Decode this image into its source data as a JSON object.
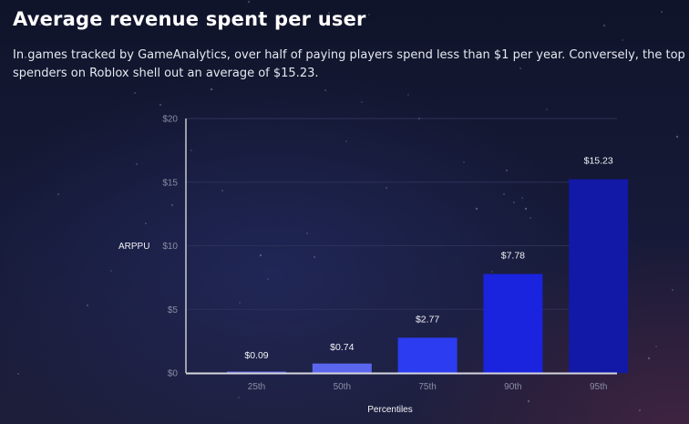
{
  "header": {
    "title": "Average revenue spent per user",
    "subtitle": "In games tracked by GameAnalytics, over half of paying players spend less than $1 per year. Conversely, the top spenders on Roblox shell out an average of $15.23."
  },
  "chart_data": {
    "type": "bar",
    "title": "Average revenue spent per user",
    "xlabel": "Percentiles",
    "ylabel": "ARPPU",
    "categories": [
      "25th",
      "50th",
      "75th",
      "90th",
      "95th"
    ],
    "values": [
      0.09,
      0.74,
      2.77,
      7.78,
      15.23
    ],
    "data_labels": [
      "$0.09",
      "$0.74",
      "$2.77",
      "$7.78",
      "$15.23"
    ],
    "bar_colors": [
      "#5b63e6",
      "#5b66ef",
      "#2c3cf0",
      "#1a23dd",
      "#1219a6"
    ],
    "ylim": [
      0,
      20
    ],
    "yticks": [
      0,
      5,
      10,
      15,
      20
    ],
    "ytick_labels": [
      "$0",
      "$5",
      "$10",
      "$15",
      "$20"
    ],
    "grid": true,
    "legend": "none"
  }
}
